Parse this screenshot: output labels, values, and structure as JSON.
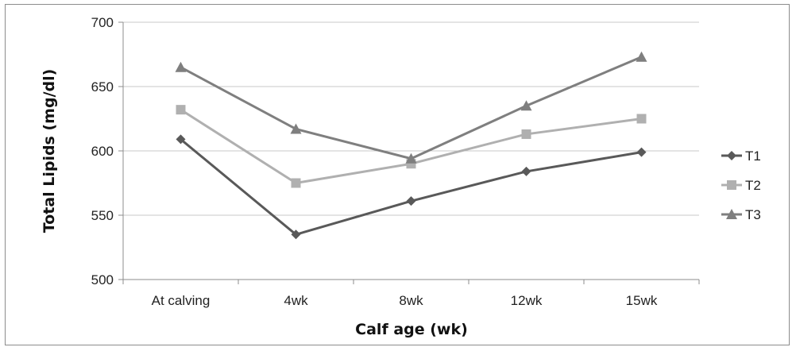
{
  "chart_data": {
    "type": "line",
    "title": "",
    "xlabel": "Calf age (wk)",
    "ylabel": "Total Lipids (mg/dl)",
    "categories": [
      "At calving",
      "4wk",
      "8wk",
      "12wk",
      "15wk"
    ],
    "ylim": [
      500,
      700
    ],
    "yticks": [
      500,
      550,
      600,
      650,
      700
    ],
    "grid": true,
    "legend_position": "right",
    "series": [
      {
        "name": "T1",
        "values": [
          609,
          535,
          561,
          584,
          599
        ],
        "color": "#595959",
        "marker": "diamond"
      },
      {
        "name": "T2",
        "values": [
          632,
          575,
          590,
          613,
          625
        ],
        "color": "#b0b0b0",
        "marker": "square"
      },
      {
        "name": "T3",
        "values": [
          665,
          617,
          594,
          635,
          673
        ],
        "color": "#7f7f7f",
        "marker": "triangle"
      }
    ]
  }
}
